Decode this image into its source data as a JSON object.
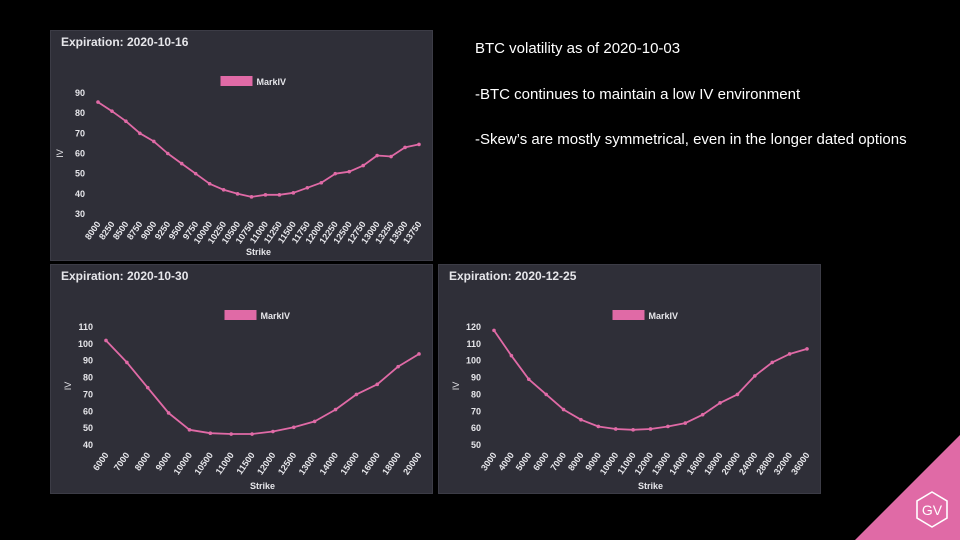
{
  "colors": {
    "line": "#e06aa6",
    "panel": "#2f2f38",
    "text": "#e6e6ea",
    "axis": "#cfcfd6",
    "brand": "#e06aa6"
  },
  "notes": {
    "title": "BTC volatility as of 2020-10-03",
    "line1": "-BTC continues to maintain a low IV environment",
    "line2": "-Skew’s are mostly symmetrical, even in the longer dated options"
  },
  "logo": {
    "text": "GV"
  },
  "chart_data": [
    {
      "type": "line",
      "title": "Expiration: 2020-10-16",
      "xlabel": "Strike",
      "ylabel": "IV",
      "legend": "MarkIV",
      "legend_position": "top-center",
      "ylim": [
        30,
        90
      ],
      "yticks": [
        30,
        40,
        50,
        60,
        70,
        80,
        90
      ],
      "categories": [
        "8000",
        "8250",
        "8500",
        "8750",
        "9000",
        "9250",
        "9500",
        "9750",
        "10000",
        "10250",
        "10500",
        "10750",
        "11000",
        "11250",
        "11500",
        "11750",
        "12000",
        "12250",
        "12500",
        "12750",
        "13000",
        "13250",
        "13500",
        "13750"
      ],
      "values": [
        85.5,
        81,
        76,
        70,
        66,
        60,
        55,
        50,
        45,
        42,
        40,
        38.5,
        39.5,
        39.5,
        40.5,
        43,
        45.5,
        50,
        51,
        54,
        59,
        58.5,
        63,
        64.5
      ]
    },
    {
      "type": "line",
      "title": "Expiration: 2020-10-30",
      "xlabel": "Strike",
      "ylabel": "IV",
      "legend": "MarkIV",
      "legend_position": "top-center",
      "ylim": [
        40,
        110
      ],
      "yticks": [
        40,
        50,
        60,
        70,
        80,
        90,
        100,
        110
      ],
      "categories": [
        "6000",
        "7000",
        "8000",
        "9000",
        "10000",
        "10500",
        "11000",
        "11500",
        "12000",
        "12500",
        "13000",
        "14000",
        "15000",
        "16000",
        "18000",
        "20000"
      ],
      "values": [
        102,
        89,
        74,
        59,
        49,
        47,
        46.5,
        46.5,
        48,
        50.5,
        54,
        61,
        70,
        76,
        86.5,
        94
      ]
    },
    {
      "type": "line",
      "title": "Expiration: 2020-12-25",
      "xlabel": "Strike",
      "ylabel": "IV",
      "legend": "MarkIV",
      "legend_position": "top-center",
      "ylim": [
        50,
        120
      ],
      "yticks": [
        50,
        60,
        70,
        80,
        90,
        100,
        110,
        120
      ],
      "categories": [
        "3000",
        "4000",
        "5000",
        "6000",
        "7000",
        "8000",
        "9000",
        "10000",
        "11000",
        "12000",
        "13000",
        "14000",
        "16000",
        "18000",
        "20000",
        "24000",
        "28000",
        "32000",
        "36000"
      ],
      "values": [
        118,
        103,
        89,
        80,
        71,
        65,
        61,
        59.5,
        59,
        59.5,
        61,
        63,
        68,
        75,
        80,
        91,
        99,
        104,
        107
      ]
    }
  ]
}
